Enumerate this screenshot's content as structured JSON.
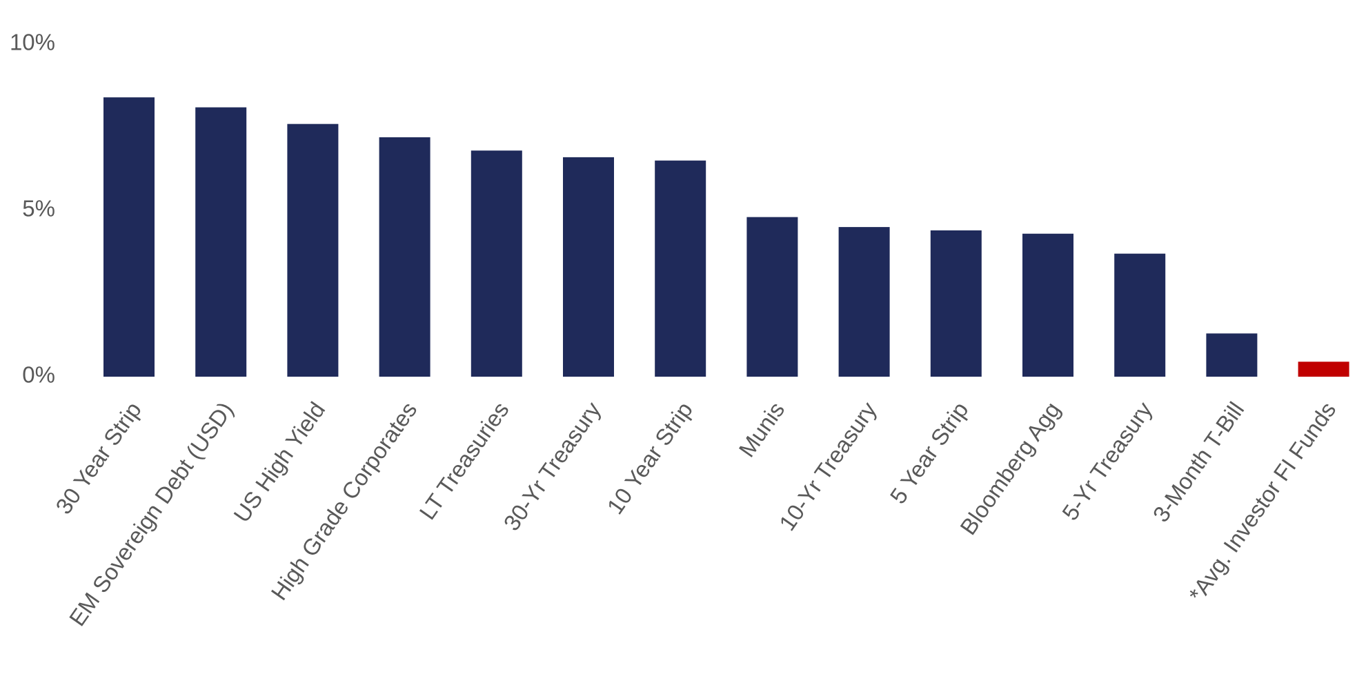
{
  "chart_data": {
    "type": "bar",
    "categories": [
      "30 Year Strip",
      "EM Sovereign Debt (USD)",
      "US High Yield",
      "High Grade Corporates",
      "LT Treasuries",
      "30-Yr Treasury",
      "10 Year Strip",
      "Munis",
      "10-Yr Treasury",
      "5 Year Strip",
      "Bloomberg Agg",
      "5-Yr Treasury",
      "3-Month T-Bill",
      "*Avg. Investor FI Funds"
    ],
    "values": [
      8.4,
      8.1,
      7.6,
      7.2,
      6.8,
      6.6,
      6.5,
      4.8,
      4.5,
      4.4,
      4.3,
      3.7,
      1.3,
      0.45
    ],
    "colors": [
      "#1f2a5a",
      "#1f2a5a",
      "#1f2a5a",
      "#1f2a5a",
      "#1f2a5a",
      "#1f2a5a",
      "#1f2a5a",
      "#1f2a5a",
      "#1f2a5a",
      "#1f2a5a",
      "#1f2a5a",
      "#1f2a5a",
      "#1f2a5a",
      "#c00000"
    ],
    "ylim": [
      0,
      10
    ],
    "yticks": [
      {
        "value": 0,
        "label": "0%"
      },
      {
        "value": 5,
        "label": "5%"
      },
      {
        "value": 10,
        "label": "10%"
      }
    ],
    "grid": false
  }
}
